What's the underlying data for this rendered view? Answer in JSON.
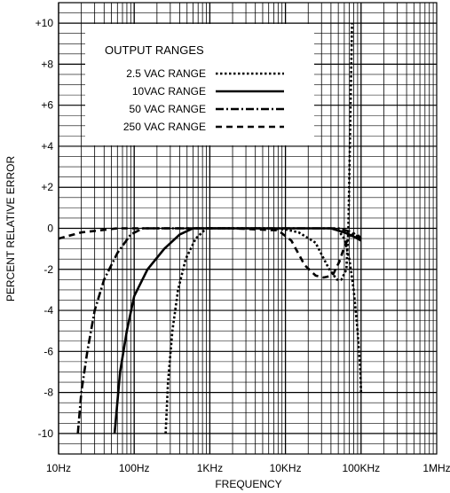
{
  "chart_data": {
    "type": "line",
    "title": "",
    "xlabel": "FREQUENCY",
    "ylabel": "PERCENT RELATIVE ERROR",
    "x_scale": "log",
    "xlim": [
      10,
      1000000
    ],
    "ylim": [
      -11,
      11
    ],
    "x_ticks": [
      {
        "value": 10,
        "label": "10Hz"
      },
      {
        "value": 100,
        "label": "100Hz"
      },
      {
        "value": 1000,
        "label": "1KHz"
      },
      {
        "value": 10000,
        "label": "10KHz"
      },
      {
        "value": 100000,
        "label": "100KHz"
      },
      {
        "value": 1000000,
        "label": "1MHz"
      }
    ],
    "y_ticks": [
      {
        "value": 10,
        "label": "+10"
      },
      {
        "value": 8,
        "label": "+8"
      },
      {
        "value": 6,
        "label": "+6"
      },
      {
        "value": 4,
        "label": "+4"
      },
      {
        "value": 2,
        "label": "+2"
      },
      {
        "value": 0,
        "label": "0"
      },
      {
        "value": -2,
        "label": "-2"
      },
      {
        "value": -4,
        "label": "-4"
      },
      {
        "value": -6,
        "label": "-6"
      },
      {
        "value": -8,
        "label": "-8"
      },
      {
        "value": -10,
        "label": "-10"
      }
    ],
    "grid": true,
    "legend": {
      "title": "OUTPUT RANGES",
      "position": "top-left"
    },
    "series": [
      {
        "name": "2.5 VAC RANGE",
        "style": "dotted",
        "segments": [
          [
            [
              260,
              -10
            ],
            [
              280,
              -7.5
            ],
            [
              320,
              -5
            ],
            [
              380,
              -3
            ],
            [
              480,
              -1.5
            ],
            [
              650,
              -0.5
            ],
            [
              900,
              0
            ],
            [
              5000,
              0
            ],
            [
              10000,
              -0.05
            ],
            [
              15000,
              -0.2
            ],
            [
              25000,
              -0.7
            ],
            [
              38000,
              -2
            ],
            [
              48000,
              -2.5
            ],
            [
              55000,
              -2.5
            ],
            [
              64000,
              -2
            ],
            [
              68000,
              0
            ],
            [
              72000,
              5
            ],
            [
              76000,
              10
            ]
          ],
          [
            [
              100000,
              -8
            ],
            [
              98000,
              -7
            ],
            [
              90000,
              -5
            ],
            [
              80000,
              -3
            ],
            [
              70000,
              -1.5
            ],
            [
              60000,
              -0.5
            ],
            [
              50000,
              -0.1
            ],
            [
              40000,
              0
            ]
          ]
        ]
      },
      {
        "name": "10VAC RANGE",
        "style": "solid",
        "segments": [
          [
            [
              55,
              -10
            ],
            [
              65,
              -7
            ],
            [
              80,
              -5
            ],
            [
              100,
              -3.3
            ],
            [
              150,
              -2
            ],
            [
              250,
              -1
            ],
            [
              400,
              -0.3
            ],
            [
              600,
              0
            ],
            [
              40000,
              0
            ],
            [
              60000,
              -0.2
            ],
            [
              80000,
              -0.4
            ],
            [
              100000,
              -0.6
            ]
          ]
        ]
      },
      {
        "name": "50 VAC RANGE",
        "style": "dash-dot",
        "segments": [
          [
            [
              18,
              -10
            ],
            [
              20,
              -8
            ],
            [
              24,
              -6
            ],
            [
              30,
              -4
            ],
            [
              40,
              -2.5
            ],
            [
              60,
              -1.2
            ],
            [
              90,
              -0.3
            ],
            [
              130,
              0
            ],
            [
              50000,
              0
            ],
            [
              70000,
              -0.15
            ],
            [
              100000,
              -0.5
            ]
          ]
        ]
      },
      {
        "name": "250 VAC RANGE",
        "style": "dashed",
        "segments": [
          [
            [
              10,
              -0.5
            ],
            [
              20,
              -0.2
            ],
            [
              35,
              -0.1
            ],
            [
              60,
              0
            ],
            [
              2000,
              0
            ],
            [
              8000,
              -0.1
            ],
            [
              12000,
              -0.6
            ],
            [
              18000,
              -1.8
            ],
            [
              25000,
              -2.3
            ],
            [
              32000,
              -2.4
            ],
            [
              42000,
              -2.3
            ],
            [
              52000,
              -1.6
            ],
            [
              60000,
              -0.9
            ],
            [
              70000,
              -0.4
            ],
            [
              85000,
              -0.2
            ],
            [
              100000,
              -0.5
            ]
          ]
        ]
      }
    ]
  }
}
